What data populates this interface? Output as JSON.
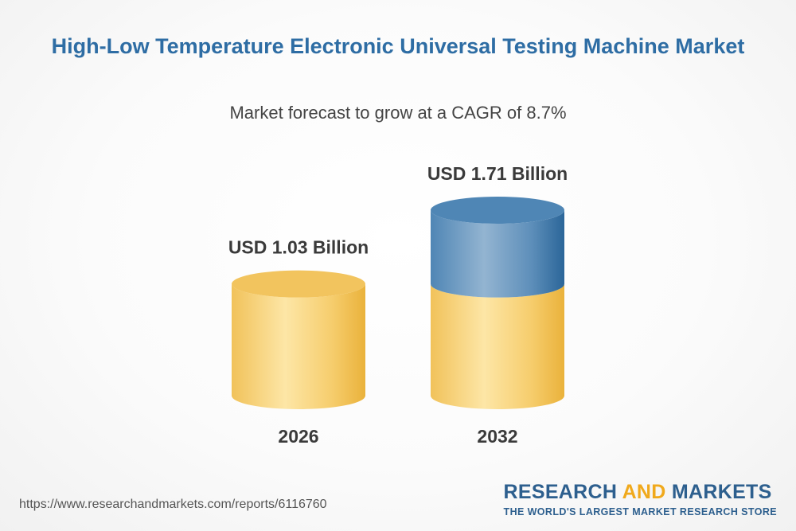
{
  "chart_data": {
    "type": "bar",
    "title": "High-Low Temperature Electronic Universal Testing Machine Market",
    "subtitle": "Market forecast to grow at a CAGR of 8.7%",
    "unit": "USD Billion",
    "categories": [
      "2026",
      "2032"
    ],
    "values": [
      1.03,
      1.71
    ],
    "value_labels": [
      "USD 1.03 Billion",
      "USD 1.71 Billion"
    ],
    "growth_segment": {
      "base": 1.03,
      "top": 1.71
    },
    "ylim": [
      0,
      1.71
    ],
    "grid": false,
    "legend": "none"
  },
  "colors": {
    "title": "#2e6da4",
    "gold_light": "#fbe3a1",
    "gold": "#f4c864",
    "gold_dark": "#e9b13a",
    "gold_top": "#f2c45e",
    "blue_light": "#8fb1cf",
    "blue": "#5b8db9",
    "blue_dark": "#2e6a9d",
    "blue_top": "#4f86b5",
    "brand_blue": "#2d5f8e",
    "brand_orange": "#f0a91c"
  },
  "footer": {
    "url": "https://www.researchandmarkets.com/reports/6116760"
  },
  "brand": {
    "name_part1": "RESEARCH",
    "name_part2": "AND",
    "name_part3": "MARKETS",
    "tagline": "THE WORLD'S LARGEST MARKET RESEARCH STORE"
  }
}
